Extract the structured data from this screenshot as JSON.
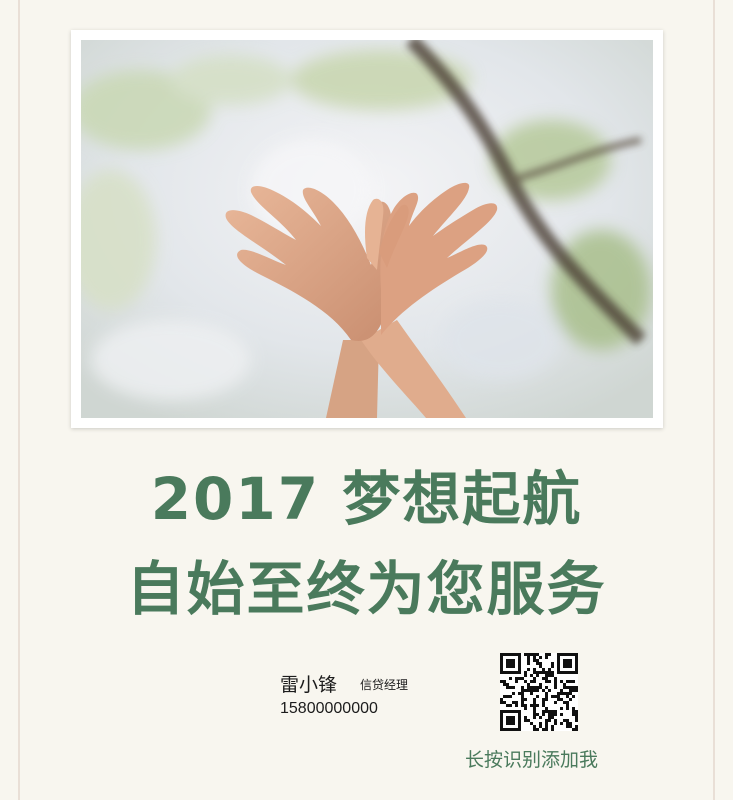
{
  "headline": {
    "line1": "2017 梦想起航",
    "line2": "自始至终为您服务"
  },
  "contact": {
    "name": "雷小锋",
    "title": "信贷经理",
    "phone": "15800000000"
  },
  "qr_caption": "长按识别添加我",
  "colors": {
    "accent": "#4a7a5c",
    "background": "#f8f6ef"
  }
}
